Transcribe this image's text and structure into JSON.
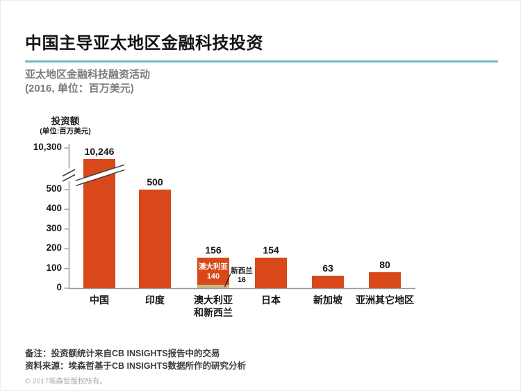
{
  "page": {
    "title": "中国主导亚太地区金融科技投资",
    "subtitle_line1": "亚太地区金融科技融资活动",
    "subtitle_line2": "(2016, 单位：百万美元)",
    "footer": {
      "note": "备注：投资额统计来自CB INSIGHTS报告中的交易",
      "source": "资料来源：埃森哲基于CB INSIGHTS数据所作的研究分析",
      "copyright": "© 2017埃森哲版权所有。"
    },
    "colors": {
      "accent_teal": "#6FB9C4",
      "bar_orange": "#D8481A",
      "bar_beige": "#CBB985",
      "axis_gray": "#9a9a9a"
    }
  },
  "chart_data": {
    "type": "bar",
    "title": "亚太地区金融科技融资活动",
    "period": "2016",
    "unit": "百万美元",
    "y_axis_title": "投资额",
    "y_axis_unit": "(单位:百万美元)",
    "categories": [
      "中国",
      "印度",
      "澳大利亚\n和新西兰",
      "日本",
      "新加坡",
      "亚洲其它地区"
    ],
    "values": [
      10246,
      500,
      156,
      154,
      63,
      80
    ],
    "value_labels": [
      "10,246",
      "500",
      "156",
      "154",
      "63",
      "80"
    ],
    "y_ticks": [
      0,
      100,
      200,
      300,
      400,
      500
    ],
    "y_break_tick_label": "10,300",
    "axis_break": true,
    "stacked": {
      "index": 2,
      "segments": [
        {
          "name": "澳大利亚",
          "value": 140,
          "label": "140"
        },
        {
          "name": "新西兰",
          "value": 16,
          "label": "16"
        }
      ]
    },
    "ylim": [
      0,
      10300
    ],
    "grid": false,
    "legend": "none"
  }
}
